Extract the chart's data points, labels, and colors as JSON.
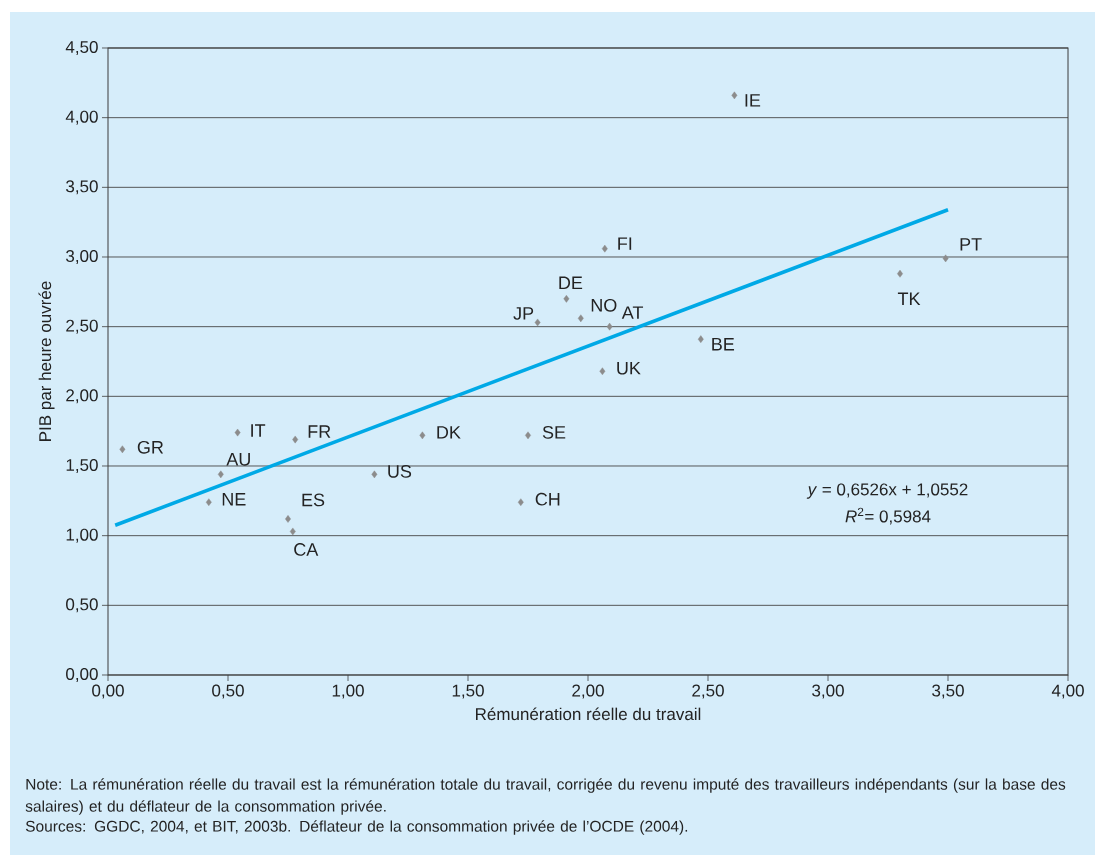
{
  "chart_data": {
    "type": "scatter",
    "xlabel": "Rémunération réelle du travail",
    "ylabel": "PIB par heure ouvrée",
    "x": [
      0.06,
      0.54,
      0.78,
      0.47,
      0.42,
      0.75,
      0.77,
      1.11,
      1.31,
      1.75,
      1.72,
      1.79,
      1.91,
      1.97,
      2.09,
      2.07,
      2.06,
      2.47,
      2.61,
      3.3,
      3.49
    ],
    "series": [
      {
        "color": "#8c8c8c",
        "marker": "diamond",
        "values": [
          1.62,
          1.74,
          1.69,
          1.44,
          1.24,
          1.12,
          1.03,
          1.44,
          1.72,
          1.72,
          1.24,
          2.53,
          2.7,
          2.56,
          2.5,
          3.06,
          2.18,
          2.41,
          4.16,
          2.88,
          2.99
        ]
      },
      {
        "type": "line",
        "marker": "none",
        "color": "#00a9e6",
        "x": [
          0.03,
          3.5
        ],
        "values": [
          1.075,
          3.339
        ]
      }
    ],
    "grid": "y",
    "xlim": [
      0,
      4
    ],
    "ylim": [
      0,
      4.5
    ],
    "xticks": [
      {
        "value": 0,
        "label": "0,00"
      },
      {
        "value": 0.5,
        "label": "0,50"
      },
      {
        "value": 1,
        "label": "1,00"
      },
      {
        "value": 1.5,
        "label": "1,50"
      },
      {
        "value": 2,
        "label": "2,00"
      },
      {
        "value": 2.5,
        "label": "2,50"
      },
      {
        "value": 3,
        "label": "3,00"
      },
      {
        "value": 3.5,
        "label": "3,50"
      },
      {
        "value": 4,
        "label": "4,00"
      }
    ],
    "yticks": [
      {
        "value": 0,
        "label": "0,00"
      },
      {
        "value": 0.5,
        "label": "0,50"
      },
      {
        "value": 1,
        "label": "1,00"
      },
      {
        "value": 1.5,
        "label": "1,50"
      },
      {
        "value": 2,
        "label": "2,00"
      },
      {
        "value": 2.5,
        "label": "2,50"
      },
      {
        "value": 3,
        "label": "3,00"
      },
      {
        "value": 3.5,
        "label": "3,50"
      },
      {
        "value": 4,
        "label": "4,00"
      },
      {
        "value": 4.5,
        "label": "4,50"
      }
    ],
    "annotations": [
      {
        "text": "GR",
        "x": 0.06,
        "y": 1.62
      },
      {
        "text": "IT",
        "x": 0.54,
        "y": 1.74
      },
      {
        "text": "FR",
        "x": 0.78,
        "y": 1.69
      },
      {
        "text": "AU",
        "x": 0.47,
        "y": 1.44
      },
      {
        "text": "NE",
        "x": 0.42,
        "y": 1.24
      },
      {
        "text": "ES",
        "x": 0.75,
        "y": 1.12
      },
      {
        "text": "CA",
        "x": 0.77,
        "y": 1.03
      },
      {
        "text": "US",
        "x": 1.11,
        "y": 1.44
      },
      {
        "text": "DK",
        "x": 1.31,
        "y": 1.72
      },
      {
        "text": "SE",
        "x": 1.75,
        "y": 1.72
      },
      {
        "text": "CH",
        "x": 1.72,
        "y": 1.24
      },
      {
        "text": "JP",
        "x": 1.79,
        "y": 2.53
      },
      {
        "text": "DE",
        "x": 1.91,
        "y": 2.7
      },
      {
        "text": "NO",
        "x": 1.97,
        "y": 2.56
      },
      {
        "text": "AT",
        "x": 2.09,
        "y": 2.5
      },
      {
        "text": "FI",
        "x": 2.07,
        "y": 3.06
      },
      {
        "text": "UK",
        "x": 2.06,
        "y": 2.18
      },
      {
        "text": "BE",
        "x": 2.47,
        "y": 2.41
      },
      {
        "text": "IE",
        "x": 2.61,
        "y": 4.16
      },
      {
        "text": "TK",
        "x": 3.3,
        "y": 2.88
      },
      {
        "text": "PT",
        "x": 3.49,
        "y": 2.99
      },
      "*y* = 0,6526x + 1,0552",
      "*R*$^{2}$= 0,5984",
      "Note: La rémunération réelle du travail est la rémunération totale du travail, corrigée du revenu imputé des travailleurs indépendants (sur la base des salaires) et du déflateur de la consommation privée.",
      "Sources: GGDC, 2004, et BIT, 2003b. Déflateur de la consommation privée de l’OCDE (2004)."
    ]
  }
}
